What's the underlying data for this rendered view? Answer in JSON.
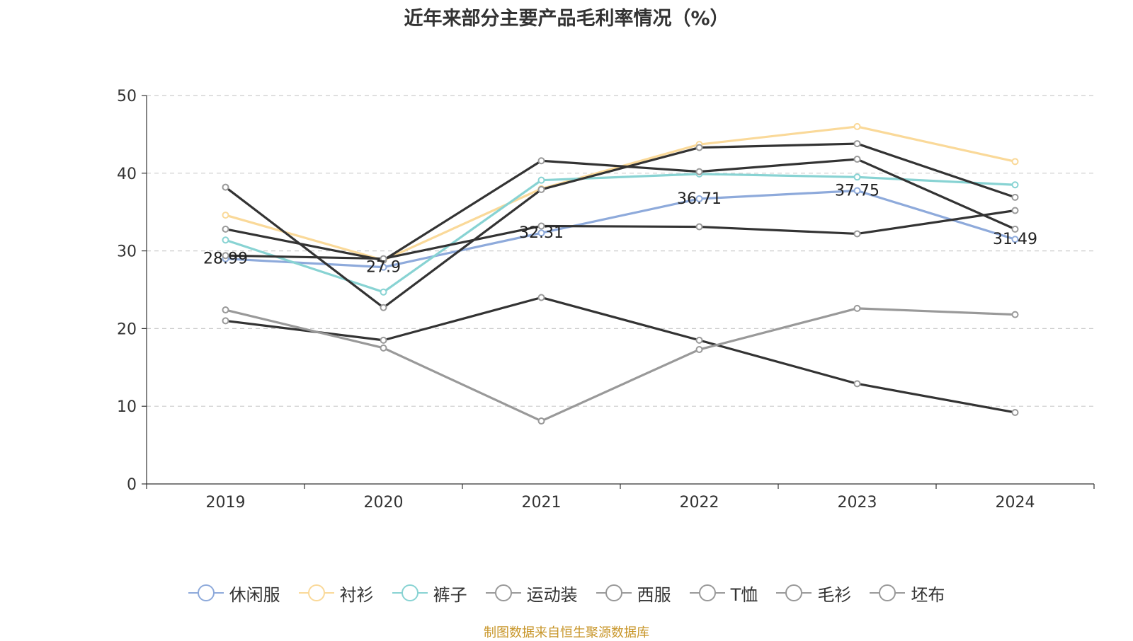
{
  "chart_data": {
    "type": "line",
    "title": "近年来部分主要产品毛利率情况（%）",
    "xlabel": "",
    "ylabel": "",
    "categories": [
      "2019",
      "2020",
      "2021",
      "2022",
      "2023",
      "2024"
    ],
    "ylim": [
      0,
      50
    ],
    "yticks": [
      0,
      10,
      20,
      30,
      40,
      50
    ],
    "grid": "horizontal-dashed",
    "legend_position": "bottom",
    "series": [
      {
        "name": "休闲服",
        "color": "#8eaadb",
        "values": [
          28.99,
          27.9,
          32.31,
          36.71,
          37.75,
          31.49
        ],
        "show_labels": true
      },
      {
        "name": "衬衫",
        "color": "#fad999",
        "values": [
          34.6,
          28.8,
          38.0,
          43.7,
          46.0,
          41.5
        ],
        "show_labels": false
      },
      {
        "name": "裤子",
        "color": "#88d3d3",
        "values": [
          31.4,
          24.7,
          39.1,
          39.9,
          39.5,
          38.5
        ],
        "show_labels": false
      },
      {
        "name": "运动装",
        "color": "#333333",
        "values": [
          38.2,
          22.7,
          37.9,
          43.3,
          43.8,
          36.9
        ],
        "show_labels": false
      },
      {
        "name": "西服",
        "color": "#333333",
        "values": [
          32.8,
          28.8,
          41.6,
          40.2,
          41.8,
          32.8
        ],
        "show_labels": false
      },
      {
        "name": "T恤",
        "color": "#333333",
        "values": [
          29.4,
          29.0,
          33.2,
          33.1,
          32.2,
          35.2
        ],
        "show_labels": false
      },
      {
        "name": "毛衫",
        "color": "#333333",
        "values": [
          21.0,
          18.5,
          24.0,
          18.5,
          12.9,
          9.2
        ],
        "show_labels": false
      },
      {
        "name": "坯布",
        "color": "#999999",
        "values": [
          22.4,
          17.5,
          8.1,
          17.3,
          22.6,
          21.8
        ],
        "show_labels": false
      }
    ]
  },
  "legend_items": [
    {
      "label": "休闲服",
      "color": "#8eaadb"
    },
    {
      "label": "衬衫",
      "color": "#fad999"
    },
    {
      "label": "裤子",
      "color": "#88d3d3"
    },
    {
      "label": "运动装",
      "color": "#999999"
    },
    {
      "label": "西服",
      "color": "#999999"
    },
    {
      "label": "T恤",
      "color": "#999999"
    },
    {
      "label": "毛衫",
      "color": "#999999"
    },
    {
      "label": "坯布",
      "color": "#999999"
    }
  ],
  "source_note": "制图数据来自恒生聚源数据库"
}
